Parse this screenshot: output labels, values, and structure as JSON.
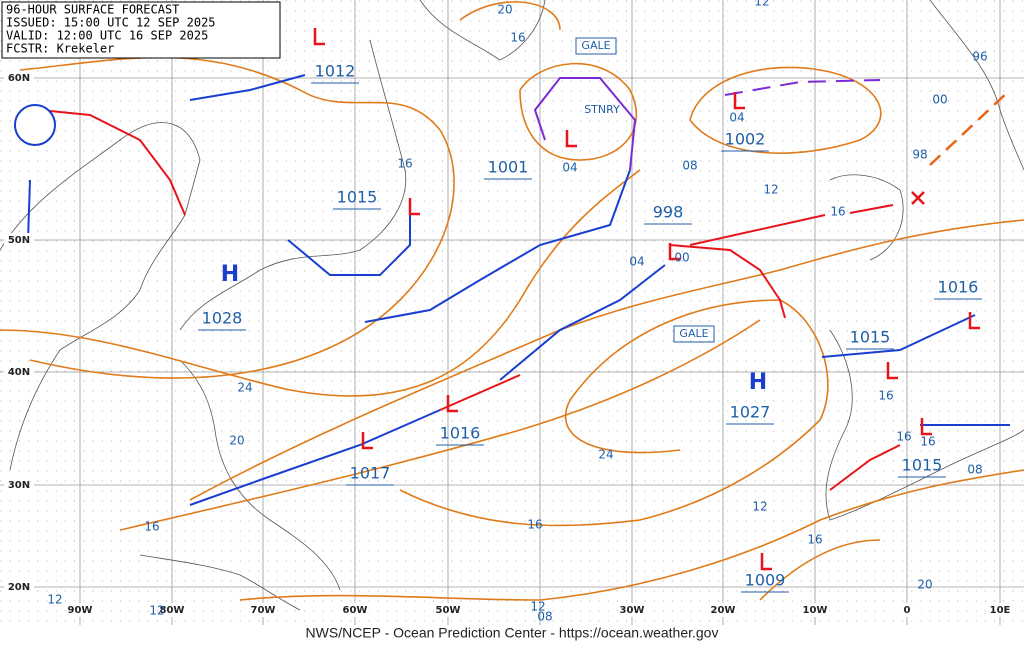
{
  "header": {
    "lines": [
      "96-HOUR SURFACE FORECAST",
      "ISSUED: 15:00 UTC 12 SEP 2025",
      "VALID: 12:00 UTC 16 SEP 2025",
      "FCSTR: Krekeler"
    ]
  },
  "footer": "NWS/NCEP - Ocean Prediction Center - https://ocean.weather.gov",
  "latitudes": [
    "60N",
    "50N",
    "40N",
    "30N",
    "20N"
  ],
  "longitudes": [
    "90W",
    "80W",
    "70W",
    "60W",
    "50W",
    "30W",
    "20W",
    "10W",
    "0",
    "10E"
  ],
  "pressures": [
    "1012",
    "1015",
    "1001",
    "998",
    "1002",
    "1028",
    "1016",
    "1017",
    "1016",
    "1015",
    "1027",
    "1015",
    "1009"
  ],
  "highs": [
    "H",
    "H"
  ],
  "tags": [
    "GALE",
    "GALE",
    "STNRY"
  ],
  "isobar_labels": [
    "20",
    "16",
    "12",
    "04",
    "04",
    "08",
    "12",
    "16",
    "00",
    "96",
    "98",
    "16",
    "24",
    "20",
    "16",
    "12",
    "12",
    "12",
    "08",
    "20",
    "24",
    "16",
    "12",
    "16",
    "16",
    "16",
    "16",
    "08",
    "04",
    "00"
  ]
}
